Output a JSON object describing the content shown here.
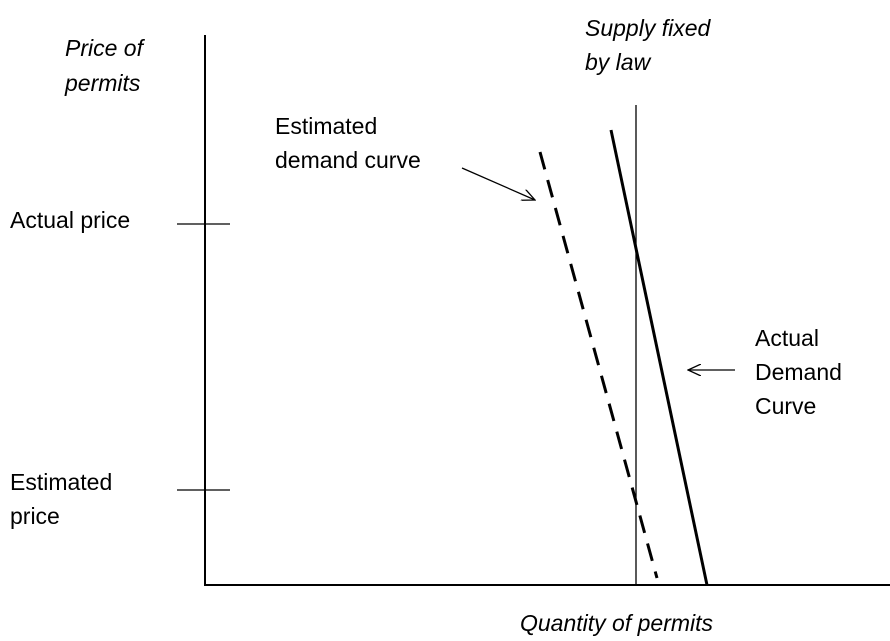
{
  "axes": {
    "y_label": [
      "Price of",
      "permits"
    ],
    "x_label": "Quantity of permits"
  },
  "labels": {
    "supply": [
      "Supply fixed",
      "by law"
    ],
    "estimated_demand": [
      "Estimated",
      "demand curve"
    ],
    "actual_price": "Actual price",
    "estimated_price": [
      "Estimated",
      "price"
    ],
    "actual_demand": [
      "Actual",
      "Demand",
      "Curve"
    ]
  }
}
